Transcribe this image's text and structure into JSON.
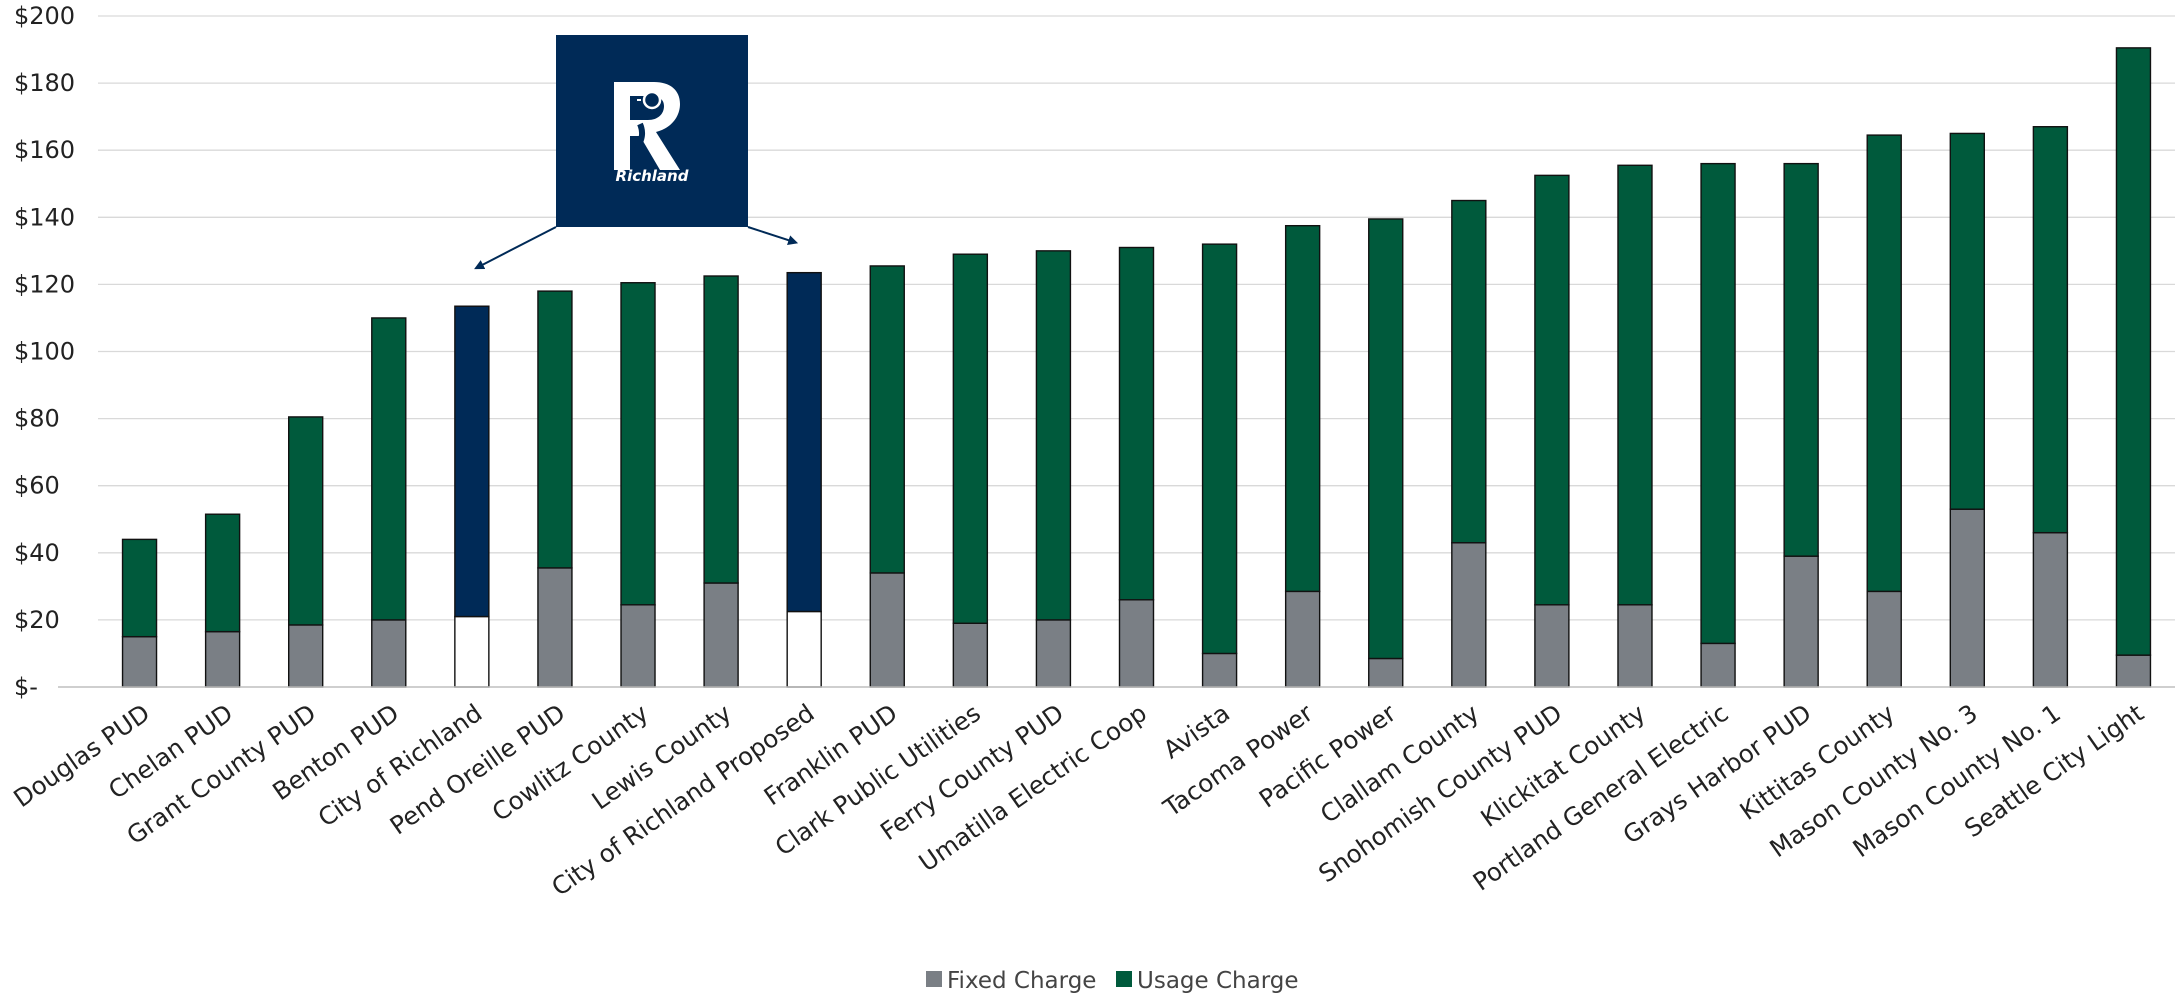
{
  "chart_data": {
    "type": "bar",
    "stacked": true,
    "categories": [
      "Douglas PUD",
      "Chelan PUD",
      "Grant County PUD",
      "Benton PUD",
      "City of Richland",
      "Pend Oreille PUD",
      "Cowlitz County",
      "Lewis County",
      "City of Richland Proposed",
      "Franklin PUD",
      "Clark Public Utilities",
      "Ferry County PUD",
      "Umatilla Electric Coop",
      "Avista",
      "Tacoma Power",
      "Pacific Power",
      "Clallam County",
      "Snohomish County PUD",
      "Klickitat County",
      "Portland General Electric",
      "Grays Harbor PUD",
      "Kittitas County",
      "Mason County No. 3",
      "Mason County No. 1",
      "Seattle City Light"
    ],
    "series": [
      {
        "name": "Fixed Charge",
        "color": "#7a7f85",
        "values": [
          15,
          16.5,
          18.5,
          20,
          21,
          35.5,
          24.5,
          31,
          22.5,
          34,
          19,
          20,
          26,
          10,
          28.5,
          8.5,
          43,
          24.5,
          24.5,
          13,
          39,
          28.5,
          53,
          46,
          9.5
        ]
      },
      {
        "name": "Usage Charge",
        "color": "#005a3c",
        "values": [
          29,
          35,
          62,
          90,
          92.5,
          82.5,
          96,
          91.5,
          101,
          91.5,
          110,
          110,
          105,
          122,
          109,
          131,
          102,
          128,
          131,
          143,
          117,
          136,
          112,
          121,
          181
        ]
      }
    ],
    "highlight": {
      "categories": [
        "City of Richland",
        "City of Richland Proposed"
      ],
      "fixed_color": "#ffffff",
      "usage_color": "#002a57"
    },
    "y_axis": {
      "min": 0,
      "max": 200,
      "step": 20,
      "tick_labels": [
        "$-",
        "$20",
        "$40",
        "$60",
        "$80",
        "$100",
        "$120",
        "$140",
        "$160",
        "$180",
        "$200"
      ]
    },
    "grid": true,
    "legend": {
      "position": "bottom",
      "items": [
        {
          "label": "Fixed Charge",
          "color": "#7a7f85"
        },
        {
          "label": "Usage Charge",
          "color": "#005a3c"
        }
      ]
    },
    "annotation": {
      "logo_text": "Richland",
      "logo_color": "#002a57",
      "points_to": [
        "City of Richland",
        "City of Richland Proposed"
      ]
    }
  }
}
